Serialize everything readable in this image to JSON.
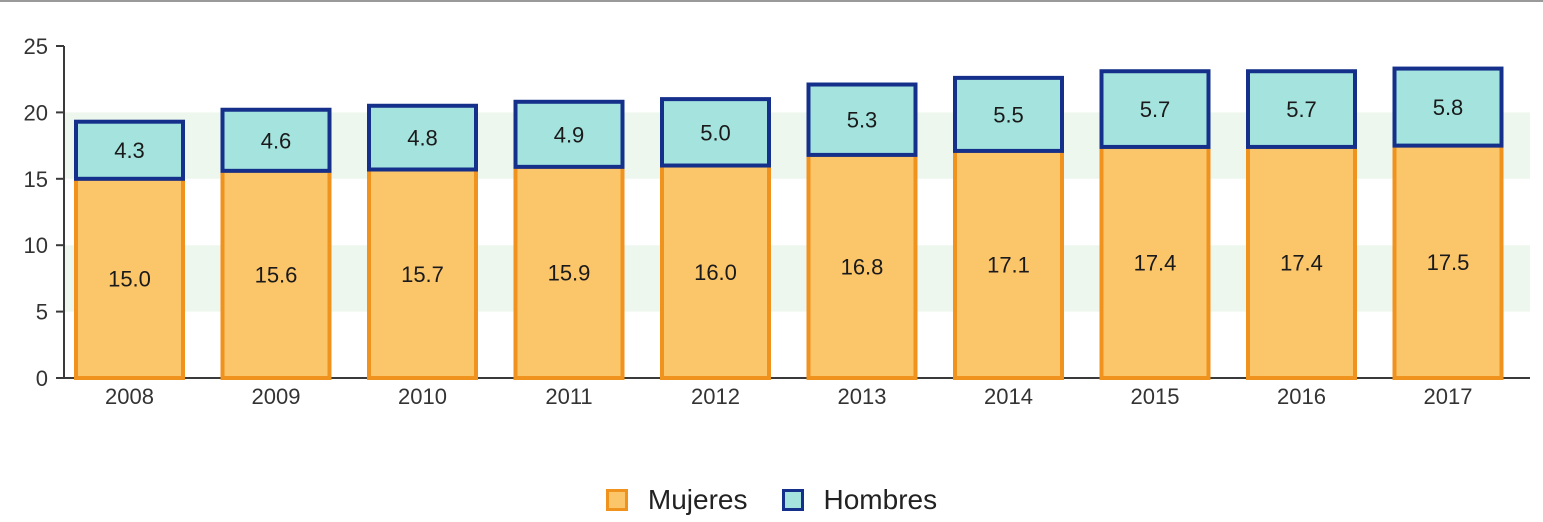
{
  "chart_data": {
    "type": "bar",
    "stacked": true,
    "title": "",
    "xlabel": "",
    "ylabel": "",
    "categories": [
      "2008",
      "2009",
      "2010",
      "2011",
      "2012",
      "2013",
      "2014",
      "2015",
      "2016",
      "2017"
    ],
    "series": [
      {
        "name": "Mujeres",
        "values": [
          15.0,
          15.6,
          15.7,
          15.9,
          16.0,
          16.8,
          17.1,
          17.4,
          17.4,
          17.5
        ],
        "labels": [
          "15.0",
          "15.6",
          "15.7",
          "15.9",
          "16.0",
          "16.8",
          "17.1",
          "17.4",
          "17.4",
          "17.5"
        ],
        "fill": "#fbc56a",
        "stroke": "#f0921e"
      },
      {
        "name": "Hombres",
        "values": [
          4.3,
          4.6,
          4.8,
          4.9,
          5.0,
          5.3,
          5.5,
          5.7,
          5.7,
          5.8
        ],
        "labels": [
          "4.3",
          "4.6",
          "4.8",
          "4.9",
          "5.0",
          "5.3",
          "5.5",
          "5.7",
          "5.7",
          "5.8"
        ],
        "fill": "#a4e3de",
        "stroke": "#15308a"
      }
    ],
    "ylim": [
      0,
      25
    ],
    "yticks": [
      0,
      5,
      10,
      15,
      20,
      25
    ],
    "ytick_labels": [
      "0",
      "5",
      "10",
      "15",
      "20",
      "25"
    ],
    "grid_bands": true,
    "band_color": "#eef7ee",
    "legend": "bottom-center"
  }
}
